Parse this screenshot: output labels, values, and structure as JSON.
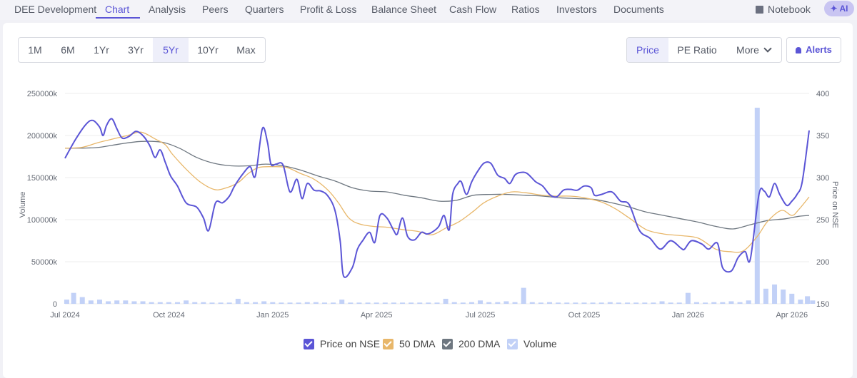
{
  "nav": {
    "tabs": [
      "DEE Development",
      "Chart",
      "Analysis",
      "Peers",
      "Quarters",
      "Profit & Loss",
      "Balance Sheet",
      "Cash Flow",
      "Ratios",
      "Investors",
      "Documents"
    ],
    "active_tab": "Chart",
    "notebook_label": "Notebook",
    "ai_label": "✦ AI"
  },
  "toolbar": {
    "periods": [
      "1M",
      "6M",
      "1Yr",
      "3Yr",
      "5Yr",
      "10Yr",
      "Max"
    ],
    "active_period": "5Yr",
    "metrics": [
      "Price",
      "PE Ratio"
    ],
    "active_metric": "Price",
    "more_label": "More",
    "alerts_label": "Alerts"
  },
  "colors": {
    "price": "#5b55d6",
    "dma50": "#e8b76a",
    "dma200": "#6e7780",
    "volume": "#c2d1f7",
    "grid": "#ececec"
  },
  "chart_data": {
    "type": "line",
    "x_tick_labels": [
      "Jul 2024",
      "Oct 2024",
      "Jan 2025",
      "Apr 2025",
      "Jul 2025",
      "Oct 2025",
      "Jan 2026",
      "Apr 2026"
    ],
    "y_left_label": "Volume",
    "y_left_ticks": [
      "250000k",
      "200000k",
      "150000k",
      "100000k",
      "50000k",
      "0"
    ],
    "y_left_range": [
      0,
      250000
    ],
    "y_right_label": "Price on NSE",
    "y_right_ticks": [
      "400",
      "350",
      "300",
      "250",
      "200",
      "150"
    ],
    "y_right_range": [
      150,
      400
    ],
    "x_range_months": [
      0,
      21.5
    ],
    "series": [
      {
        "name": "Price on NSE",
        "axis": "right",
        "points": [
          [
            0,
            323
          ],
          [
            0.3,
            345
          ],
          [
            0.6,
            363
          ],
          [
            0.8,
            368
          ],
          [
            1.0,
            360
          ],
          [
            1.1,
            350
          ],
          [
            1.2,
            362
          ],
          [
            1.35,
            370
          ],
          [
            1.5,
            358
          ],
          [
            1.65,
            347
          ],
          [
            1.85,
            349
          ],
          [
            2.05,
            355
          ],
          [
            2.25,
            350
          ],
          [
            2.45,
            338
          ],
          [
            2.6,
            324
          ],
          [
            2.75,
            333
          ],
          [
            2.9,
            318
          ],
          [
            3.05,
            302
          ],
          [
            3.25,
            290
          ],
          [
            3.5,
            270
          ],
          [
            3.8,
            265
          ],
          [
            4.0,
            252
          ],
          [
            4.15,
            237
          ],
          [
            4.35,
            270
          ],
          [
            4.55,
            270
          ],
          [
            4.75,
            278
          ],
          [
            4.9,
            290
          ],
          [
            5.15,
            305
          ],
          [
            5.35,
            313
          ],
          [
            5.5,
            302
          ],
          [
            5.7,
            358
          ],
          [
            5.85,
            342
          ],
          [
            5.95,
            316
          ],
          [
            6.1,
            316
          ],
          [
            6.3,
            315
          ],
          [
            6.5,
            283
          ],
          [
            6.7,
            298
          ],
          [
            6.85,
            275
          ],
          [
            7.0,
            293
          ],
          [
            7.2,
            285
          ],
          [
            7.4,
            284
          ],
          [
            7.6,
            278
          ],
          [
            7.8,
            261
          ],
          [
            7.95,
            225
          ],
          [
            8.05,
            183
          ],
          [
            8.3,
            193
          ],
          [
            8.45,
            215
          ],
          [
            8.6,
            225
          ],
          [
            8.8,
            235
          ],
          [
            8.95,
            223
          ],
          [
            9.1,
            255
          ],
          [
            9.3,
            252
          ],
          [
            9.5,
            237
          ],
          [
            9.6,
            233
          ],
          [
            9.75,
            252
          ],
          [
            9.9,
            230
          ],
          [
            10.1,
            226
          ],
          [
            10.3,
            235
          ],
          [
            10.45,
            233
          ],
          [
            10.6,
            235
          ],
          [
            10.8,
            242
          ],
          [
            10.95,
            255
          ],
          [
            11.1,
            238
          ],
          [
            11.2,
            280
          ],
          [
            11.35,
            293
          ],
          [
            11.45,
            295
          ],
          [
            11.6,
            280
          ],
          [
            11.75,
            295
          ],
          [
            11.9,
            306
          ],
          [
            12.1,
            317
          ],
          [
            12.3,
            317
          ],
          [
            12.5,
            303
          ],
          [
            12.7,
            299
          ],
          [
            12.85,
            293
          ],
          [
            13.0,
            303
          ],
          [
            13.15,
            306
          ],
          [
            13.35,
            305
          ],
          [
            13.6,
            295
          ],
          [
            13.8,
            290
          ],
          [
            14.0,
            280
          ],
          [
            14.2,
            277
          ],
          [
            14.4,
            285
          ],
          [
            14.6,
            286
          ],
          [
            14.8,
            285
          ],
          [
            15.0,
            290
          ],
          [
            15.2,
            288
          ],
          [
            15.3,
            279
          ],
          [
            15.5,
            280
          ],
          [
            15.8,
            283
          ],
          [
            16.05,
            272
          ],
          [
            16.3,
            268
          ],
          [
            16.6,
            237
          ],
          [
            16.9,
            228
          ],
          [
            17.2,
            215
          ],
          [
            17.5,
            225
          ],
          [
            17.8,
            216
          ],
          [
            17.9,
            215
          ],
          [
            18.1,
            225
          ],
          [
            18.4,
            221
          ],
          [
            18.6,
            215
          ],
          [
            18.85,
            222
          ],
          [
            19.0,
            193
          ],
          [
            19.25,
            189
          ],
          [
            19.45,
            205
          ],
          [
            19.65,
            212
          ],
          [
            19.8,
            203
          ],
          [
            20.05,
            280
          ],
          [
            20.2,
            284
          ],
          [
            20.35,
            277
          ],
          [
            20.5,
            293
          ],
          [
            20.65,
            280
          ],
          [
            20.85,
            267
          ],
          [
            21.0,
            272
          ],
          [
            21.15,
            280
          ],
          [
            21.3,
            295
          ],
          [
            21.5,
            356
          ]
        ]
      },
      {
        "name": "50 DMA",
        "axis": "right",
        "points": [
          [
            0,
            335
          ],
          [
            0.5,
            336
          ],
          [
            1.0,
            342
          ],
          [
            1.8,
            350
          ],
          [
            2.2,
            354
          ],
          [
            2.6,
            346
          ],
          [
            2.9,
            339
          ],
          [
            3.1,
            328
          ],
          [
            3.5,
            310
          ],
          [
            3.9,
            295
          ],
          [
            4.3,
            286
          ],
          [
            4.6,
            287
          ],
          [
            5.0,
            294
          ],
          [
            5.3,
            305
          ],
          [
            5.6,
            312
          ],
          [
            6.0,
            313
          ],
          [
            6.4,
            312
          ],
          [
            6.8,
            305
          ],
          [
            7.2,
            298
          ],
          [
            7.6,
            285
          ],
          [
            7.9,
            270
          ],
          [
            8.2,
            252
          ],
          [
            8.5,
            245
          ],
          [
            8.9,
            242
          ],
          [
            9.3,
            241
          ],
          [
            9.8,
            238
          ],
          [
            10.2,
            236
          ],
          [
            10.6,
            232
          ],
          [
            11.0,
            240
          ],
          [
            11.4,
            248
          ],
          [
            11.8,
            260
          ],
          [
            12.1,
            270
          ],
          [
            12.5,
            278
          ],
          [
            12.9,
            283
          ],
          [
            13.3,
            282
          ],
          [
            13.8,
            279
          ],
          [
            14.2,
            278
          ],
          [
            14.6,
            278
          ],
          [
            15.0,
            276
          ],
          [
            15.5,
            271
          ],
          [
            15.9,
            263
          ],
          [
            16.3,
            252
          ],
          [
            16.8,
            238
          ],
          [
            17.3,
            233
          ],
          [
            17.8,
            231
          ],
          [
            18.3,
            228
          ],
          [
            18.8,
            215
          ],
          [
            19.2,
            212
          ],
          [
            19.6,
            213
          ],
          [
            20.0,
            230
          ],
          [
            20.3,
            248
          ],
          [
            20.7,
            261
          ],
          [
            21.0,
            255
          ],
          [
            21.2,
            262
          ],
          [
            21.5,
            277
          ]
        ]
      },
      {
        "name": "200 DMA",
        "axis": "right",
        "points": [
          [
            0,
            335
          ],
          [
            0.5,
            335
          ],
          [
            1.0,
            336
          ],
          [
            1.6,
            340
          ],
          [
            2.2,
            343
          ],
          [
            2.8,
            342
          ],
          [
            3.3,
            335
          ],
          [
            3.8,
            324
          ],
          [
            4.3,
            317
          ],
          [
            4.8,
            314
          ],
          [
            5.3,
            314
          ],
          [
            5.8,
            316
          ],
          [
            6.3,
            314
          ],
          [
            6.8,
            309
          ],
          [
            7.3,
            302
          ],
          [
            7.8,
            296
          ],
          [
            8.3,
            288
          ],
          [
            8.8,
            284
          ],
          [
            9.3,
            283
          ],
          [
            9.8,
            279
          ],
          [
            10.3,
            276
          ],
          [
            10.8,
            272
          ],
          [
            11.3,
            273
          ],
          [
            11.8,
            279
          ],
          [
            12.3,
            280
          ],
          [
            12.8,
            280
          ],
          [
            13.3,
            279
          ],
          [
            13.8,
            278
          ],
          [
            14.3,
            276
          ],
          [
            14.8,
            275
          ],
          [
            15.3,
            274
          ],
          [
            15.8,
            270
          ],
          [
            16.3,
            265
          ],
          [
            16.8,
            259
          ],
          [
            17.3,
            255
          ],
          [
            17.8,
            251
          ],
          [
            18.3,
            247
          ],
          [
            18.8,
            242
          ],
          [
            19.3,
            239
          ],
          [
            19.8,
            244
          ],
          [
            20.3,
            249
          ],
          [
            20.8,
            251
          ],
          [
            21.2,
            254
          ],
          [
            21.5,
            255
          ]
        ]
      }
    ],
    "volume": {
      "name": "Volume",
      "axis": "left",
      "bars": [
        [
          0.05,
          5000
        ],
        [
          0.25,
          13000
        ],
        [
          0.5,
          8000
        ],
        [
          0.75,
          4000
        ],
        [
          1.0,
          5000
        ],
        [
          1.25,
          3000
        ],
        [
          1.5,
          4000
        ],
        [
          1.75,
          4000
        ],
        [
          2.0,
          3000
        ],
        [
          2.25,
          3000
        ],
        [
          2.5,
          2000
        ],
        [
          2.75,
          2000
        ],
        [
          3.0,
          2000
        ],
        [
          3.25,
          2000
        ],
        [
          3.5,
          4000
        ],
        [
          3.75,
          2000
        ],
        [
          4.0,
          2000
        ],
        [
          4.25,
          1500
        ],
        [
          4.5,
          1500
        ],
        [
          4.75,
          1500
        ],
        [
          5.0,
          6000
        ],
        [
          5.25,
          2000
        ],
        [
          5.5,
          2000
        ],
        [
          5.75,
          3000
        ],
        [
          6.0,
          2000
        ],
        [
          6.25,
          1500
        ],
        [
          6.5,
          1500
        ],
        [
          6.75,
          1500
        ],
        [
          7.0,
          2000
        ],
        [
          7.25,
          2000
        ],
        [
          7.5,
          1500
        ],
        [
          7.75,
          1500
        ],
        [
          8.0,
          5000
        ],
        [
          8.25,
          1500
        ],
        [
          8.5,
          1500
        ],
        [
          8.75,
          1500
        ],
        [
          9.0,
          1500
        ],
        [
          9.25,
          1500
        ],
        [
          9.5,
          1500
        ],
        [
          9.75,
          1500
        ],
        [
          10.0,
          1500
        ],
        [
          10.25,
          1500
        ],
        [
          10.5,
          1500
        ],
        [
          10.75,
          1500
        ],
        [
          11.0,
          6000
        ],
        [
          11.25,
          2000
        ],
        [
          11.5,
          1500
        ],
        [
          11.75,
          2000
        ],
        [
          12.0,
          4000
        ],
        [
          12.25,
          2000
        ],
        [
          12.5,
          2000
        ],
        [
          12.75,
          3000
        ],
        [
          13.0,
          2000
        ],
        [
          13.25,
          19000
        ],
        [
          13.5,
          2000
        ],
        [
          13.75,
          1500
        ],
        [
          14.0,
          2000
        ],
        [
          14.25,
          1500
        ],
        [
          14.5,
          1500
        ],
        [
          14.75,
          1500
        ],
        [
          15.0,
          1500
        ],
        [
          15.25,
          1500
        ],
        [
          15.5,
          1500
        ],
        [
          15.75,
          2000
        ],
        [
          16.0,
          1500
        ],
        [
          16.25,
          1500
        ],
        [
          16.5,
          1500
        ],
        [
          16.75,
          1500
        ],
        [
          17.0,
          1500
        ],
        [
          17.25,
          3000
        ],
        [
          17.5,
          1500
        ],
        [
          17.75,
          1500
        ],
        [
          18.0,
          13000
        ],
        [
          18.25,
          2000
        ],
        [
          18.5,
          1500
        ],
        [
          18.75,
          2000
        ],
        [
          19.0,
          2000
        ],
        [
          19.25,
          3000
        ],
        [
          19.5,
          2000
        ],
        [
          19.75,
          4000
        ],
        [
          20.0,
          233000
        ],
        [
          20.25,
          18000
        ],
        [
          20.5,
          23000
        ],
        [
          20.75,
          17000
        ],
        [
          21.0,
          12000
        ],
        [
          21.25,
          5000
        ],
        [
          21.45,
          9000
        ],
        [
          21.6,
          4000
        ]
      ]
    }
  }
}
